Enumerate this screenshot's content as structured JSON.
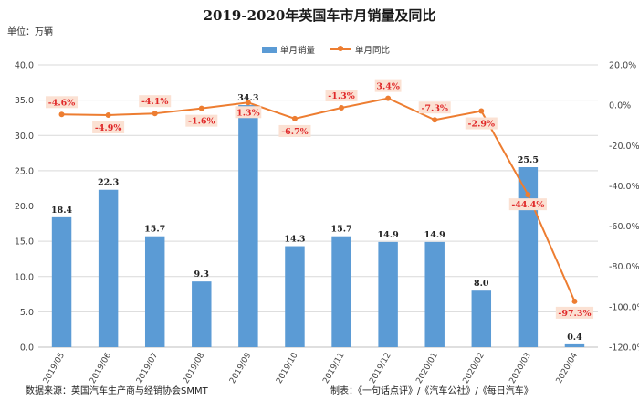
{
  "title": "2019-2020年英国车市月销量及同比",
  "unit_note": "单位：万辆",
  "source": "数据来源：英国汽车生产商与经销协会SMMT",
  "credit": "制表：《一句话点评》/《汽车公社》/《每日汽车》",
  "colors": {
    "bar": "#5b9bd5",
    "line": "#ed7d31",
    "yoy_label_bg": "#fbe1d3",
    "yoy_label_text": "#e0292a"
  },
  "chart_data": {
    "type": "bar",
    "title": "2019-2020年英国车市月销量及同比",
    "categories": [
      "2019/05",
      "2019/06",
      "2019/07",
      "2019/08",
      "2019/09",
      "2019/10",
      "2019/11",
      "2019/12",
      "2020/01",
      "2020/02",
      "2020/03",
      "2020/04"
    ],
    "series": [
      {
        "name": "单月销量",
        "type": "bar",
        "axis": "left",
        "values": [
          18.4,
          22.3,
          15.7,
          9.3,
          34.3,
          14.3,
          15.7,
          14.9,
          14.9,
          8.0,
          25.5,
          0.4
        ],
        "labels": [
          "18.4",
          "22.3",
          "15.7",
          "9.3",
          "34.3",
          "14.3",
          "15.7",
          "14.9",
          "14.9",
          "8.0",
          "25.5",
          "0.4"
        ]
      },
      {
        "name": "单月同比",
        "type": "line",
        "axis": "right",
        "values": [
          -4.6,
          -4.9,
          -4.1,
          -1.6,
          1.3,
          -6.7,
          -1.3,
          3.4,
          -7.3,
          -2.9,
          -44.4,
          -97.3
        ],
        "labels": [
          "-4.6%",
          "-4.9%",
          "-4.1%",
          "-1.6%",
          "1.3%",
          "-6.7%",
          "-1.3%",
          "3.4%",
          "-7.3%",
          "-2.9%",
          "-44.4%",
          "-97.3%"
        ]
      }
    ],
    "y_left": {
      "range": [
        0,
        40
      ],
      "ticks": [
        "0.0",
        "5.0",
        "10.0",
        "15.0",
        "20.0",
        "25.0",
        "30.0",
        "35.0",
        "40.0"
      ]
    },
    "y_right": {
      "range": [
        -120,
        20
      ],
      "ticks": [
        "-120.0%",
        "-100.0%",
        "-80.0%",
        "-60.0%",
        "-40.0%",
        "-20.0%",
        "0.0%",
        "20.0%"
      ]
    },
    "grid": true,
    "legend_position": "top"
  }
}
